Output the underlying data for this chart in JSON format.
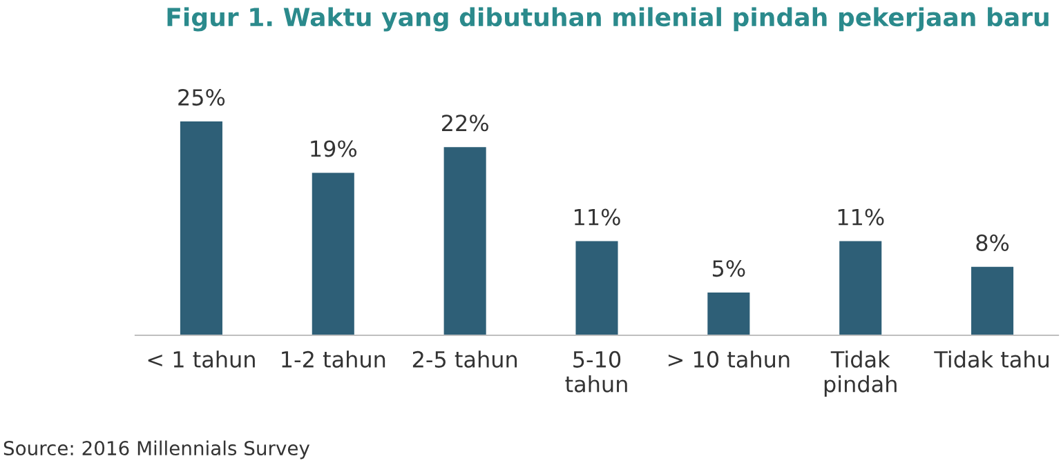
{
  "chart_data": {
    "type": "bar",
    "title": "Figur 1. Waktu yang dibutuhan milenial pindah pekerjaan baru",
    "categories": [
      "< 1 tahun",
      "1-2 tahun",
      "2-5 tahun",
      "5-10\ntahun",
      "> 10 tahun",
      "Tidak\npindah",
      "Tidak tahu"
    ],
    "values": [
      25,
      19,
      22,
      11,
      5,
      11,
      8
    ],
    "color": "#2e5f77",
    "value_labels": [
      "25%",
      "19%",
      "22%",
      "11%",
      "5%",
      "11%",
      "8%"
    ],
    "annotations": [
      "Source: 2016 Millennials Survey"
    ],
    "grid": false,
    "legend": false
  }
}
